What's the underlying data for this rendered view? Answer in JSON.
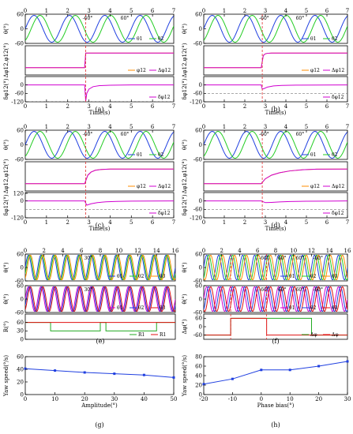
{
  "chart_data": [
    {
      "panel": "(a)",
      "type": "line",
      "xlim": [
        0,
        7
      ],
      "xticks": [
        0,
        1,
        2,
        3,
        4,
        5,
        6,
        7
      ],
      "xlabel": "Time(s)",
      "event_x": 2.85,
      "subplots": [
        {
          "ylabel": "θ(°)",
          "ylim": [
            -60,
            60
          ],
          "yticks": [
            "60",
            "0",
            "-60"
          ],
          "series": [
            {
              "name": "θ1",
              "color": "#1f3fe0",
              "kind": "sine",
              "amplitude": 55,
              "frequency": 0.6,
              "phase_deg": 0
            },
            {
              "name": "θ2",
              "color": "#22cc22",
              "kind": "sine",
              "amplitude": 55,
              "frequency": 0.6,
              "phase_deg": -60
            }
          ],
          "annotations": [
            "-60°",
            "60°"
          ]
        },
        {
          "ylabel": "Δφ12,φ12(°)",
          "ylim": [
            -120,
            120
          ],
          "yticks": [],
          "series": [
            {
              "name": "φ12",
              "color": "#ff8c00",
              "x": [
                0,
                2.8,
                2.85,
                7
              ],
              "y": [
                -60,
                -60,
                60,
                60
              ]
            },
            {
              "name": "Δφ12",
              "color": "#d000d0",
              "x": [
                0,
                2.8,
                2.85,
                7
              ],
              "y": [
                -60,
                -60,
                60,
                60
              ]
            }
          ]
        },
        {
          "ylabel": "δφ12(°)",
          "ylim": [
            -120,
            60
          ],
          "yticks": [
            "0",
            "-60",
            "-120"
          ],
          "series": [
            {
              "name": "δφ12",
              "color": "#d000d0",
              "x": [
                0,
                2.8,
                2.85,
                2.9,
                3.0,
                3.2,
                3.5,
                4,
                5,
                7
              ],
              "y": [
                0,
                0,
                -115,
                -60,
                -30,
                -12,
                -5,
                -2,
                0,
                0
              ]
            }
          ],
          "reference_y": -120
        }
      ]
    },
    {
      "panel": "(b)",
      "type": "line",
      "xlim": [
        0,
        7
      ],
      "xticks": [
        0,
        1,
        2,
        3,
        4,
        5,
        6,
        7
      ],
      "xlabel": "Time(s)",
      "event_x": 2.85,
      "subplots": [
        {
          "ylabel": "θ(°)",
          "ylim": [
            -60,
            60
          ],
          "yticks": [
            "60",
            "0",
            "-60"
          ],
          "series": [
            {
              "name": "θ1",
              "color": "#1f3fe0",
              "kind": "sine",
              "amplitude": 55,
              "frequency": 0.6,
              "phase_deg": 0
            },
            {
              "name": "θ2",
              "color": "#22cc22",
              "kind": "sine",
              "amplitude": 55,
              "frequency": 0.6,
              "phase_deg": -60
            }
          ],
          "annotations": [
            "-60°",
            "60°"
          ]
        },
        {
          "ylabel": "Δφ12,φ12(°)",
          "ylim": [
            -120,
            120
          ],
          "yticks": [],
          "series": [
            {
              "name": "φ12",
              "color": "#ff8c00",
              "x": [
                0,
                2.8,
                2.9,
                3.0,
                3.1,
                3.3,
                7
              ],
              "y": [
                -60,
                -60,
                40,
                54,
                58,
                60,
                60
              ]
            },
            {
              "name": "Δφ12",
              "color": "#d000d0",
              "x": [
                0,
                2.8,
                2.9,
                3.0,
                3.1,
                3.3,
                7
              ],
              "y": [
                -60,
                -60,
                40,
                54,
                58,
                60,
                60
              ]
            }
          ]
        },
        {
          "ylabel": "δφ12(°)",
          "ylim": [
            -120,
            60
          ],
          "yticks": [
            "0",
            "-60",
            "-120"
          ],
          "series": [
            {
              "name": "δφ12",
              "color": "#d000d0",
              "x": [
                0,
                2.8,
                2.85,
                2.95,
                3.1,
                3.4,
                3.8,
                4.5,
                7
              ],
              "y": [
                0,
                0,
                -30,
                -25,
                -15,
                -7,
                -3,
                -1,
                0
              ]
            }
          ],
          "reference_y": -60
        }
      ]
    },
    {
      "panel": "(c)",
      "type": "line",
      "xlim": [
        0,
        7
      ],
      "xticks": [
        0,
        1,
        2,
        3,
        4,
        5,
        6,
        7
      ],
      "xlabel": "Time(s)",
      "event_x": 2.85,
      "subplots": [
        {
          "ylabel": "θ(°)",
          "ylim": [
            -60,
            60
          ],
          "yticks": [
            "60",
            "0",
            "-60"
          ],
          "series": [
            {
              "name": "θ1",
              "color": "#1f3fe0",
              "kind": "sine",
              "amplitude": 55,
              "frequency": 0.6,
              "phase_deg": 0
            },
            {
              "name": "θ2",
              "color": "#22cc22",
              "kind": "sine",
              "amplitude": 55,
              "frequency": 0.6,
              "phase_deg": -60
            }
          ],
          "annotations": [
            "-60°",
            "60°"
          ]
        },
        {
          "ylabel": "Δφ12,φ12(°)",
          "ylim": [
            -120,
            120
          ],
          "yticks": [],
          "series": [
            {
              "name": "φ12",
              "color": "#ff8c00",
              "x": [
                0,
                2.8,
                2.95,
                3.1,
                3.3,
                3.6,
                4.0,
                7
              ],
              "y": [
                -60,
                -60,
                10,
                35,
                50,
                57,
                60,
                60
              ]
            },
            {
              "name": "Δφ12",
              "color": "#d000d0",
              "x": [
                0,
                2.8,
                2.95,
                3.1,
                3.3,
                3.6,
                4.0,
                7
              ],
              "y": [
                -60,
                -60,
                10,
                35,
                50,
                57,
                60,
                60
              ]
            }
          ]
        },
        {
          "ylabel": "δφ12(°)",
          "ylim": [
            -120,
            60
          ],
          "yticks": [
            "120",
            "0",
            "-120"
          ],
          "series": [
            {
              "name": "δφ12",
              "color": "#d000d0",
              "x": [
                0,
                2.8,
                2.9,
                3.1,
                3.4,
                3.8,
                4.3,
                5,
                7
              ],
              "y": [
                0,
                0,
                -30,
                -20,
                -12,
                -6,
                -3,
                -1,
                0
              ]
            }
          ],
          "reference_y": -60
        }
      ]
    },
    {
      "panel": "(d)",
      "type": "line",
      "xlim": [
        0,
        7
      ],
      "xticks": [
        0,
        1,
        2,
        3,
        4,
        5,
        6,
        7
      ],
      "xlabel": "Time(s)",
      "event_x": 2.85,
      "subplots": [
        {
          "ylabel": "θ(°)",
          "ylim": [
            -60,
            60
          ],
          "yticks": [
            "60",
            "0",
            "-60"
          ],
          "series": [
            {
              "name": "θ1",
              "color": "#1f3fe0",
              "kind": "sine",
              "amplitude": 55,
              "frequency": 0.6,
              "phase_deg": 0
            },
            {
              "name": "θ2",
              "color": "#22cc22",
              "kind": "sine",
              "amplitude": 55,
              "frequency": 0.6,
              "phase_deg": -60
            }
          ],
          "annotations": [
            "-60°",
            "60°"
          ]
        },
        {
          "ylabel": "Δφ12,φ12(°)",
          "ylim": [
            -120,
            120
          ],
          "yticks": [],
          "series": [
            {
              "name": "φ12",
              "color": "#ff8c00",
              "x": [
                0,
                2.8,
                3.0,
                3.3,
                3.7,
                4.2,
                4.8,
                5.5,
                7
              ],
              "y": [
                -60,
                -60,
                -20,
                10,
                30,
                45,
                54,
                59,
                60
              ]
            },
            {
              "name": "Δφ12",
              "color": "#d000d0",
              "x": [
                0,
                2.8,
                3.0,
                3.3,
                3.7,
                4.2,
                4.8,
                5.5,
                7
              ],
              "y": [
                -60,
                -60,
                -20,
                10,
                30,
                45,
                54,
                59,
                60
              ]
            }
          ]
        },
        {
          "ylabel": "δφ12(°)",
          "ylim": [
            -120,
            60
          ],
          "yticks": [
            "0",
            "-60",
            "-120"
          ],
          "series": [
            {
              "name": "δφ12",
              "color": "#d000d0",
              "x": [
                0,
                2.8,
                3.0,
                3.3,
                3.7,
                4.2,
                5,
                6,
                7
              ],
              "y": [
                0,
                0,
                -12,
                -10,
                -7,
                -4,
                -2,
                -1,
                0
              ]
            }
          ],
          "reference_y": -60
        }
      ]
    },
    {
      "panel": "(e)",
      "type": "line",
      "xlim": [
        0,
        16
      ],
      "xticks": [
        0,
        2,
        4,
        6,
        8,
        10,
        12,
        14,
        16
      ],
      "subplots": [
        {
          "ylabel": "θ(°)",
          "ylim": [
            -60,
            60
          ],
          "yticks": [
            "60",
            "0",
            "-60"
          ],
          "series": [
            {
              "name": "θ1",
              "color": "#1f3fe0",
              "kind": "sine",
              "amplitude": 55,
              "frequency": 0.75,
              "phase_deg": 0
            },
            {
              "name": "θ2",
              "color": "#22cc22",
              "kind": "sine",
              "amplitude": 55,
              "frequency": 0.75,
              "phase_deg": -30
            },
            {
              "name": "θ3",
              "color": "#ff8c00",
              "kind": "sine",
              "amplitude": 55,
              "frequency": 0.75,
              "phase_deg": -60
            }
          ],
          "annotations": [
            "30°"
          ]
        },
        {
          "ylabel": "θ̇(°)",
          "ylim": [
            -60,
            60
          ],
          "yticks": [
            "60",
            "0",
            "-60"
          ],
          "series": [
            {
              "name": "θ1",
              "color": "#d000d0",
              "kind": "sine",
              "amplitude": 55,
              "frequency": 0.75,
              "phase_deg": 0
            },
            {
              "name": "θ2",
              "color": "#1f3fe0",
              "kind": "sine",
              "amplitude": 55,
              "frequency": 0.75,
              "phase_deg": -30
            },
            {
              "name": "θ3",
              "color": "#e01010",
              "kind": "sine",
              "amplitude": 55,
              "frequency": 0.75,
              "phase_deg": -60
            }
          ],
          "annotations": [
            "30°"
          ]
        },
        {
          "ylabel": "R(°)",
          "ylim": [
            0,
            90
          ],
          "yticks": [
            "60",
            "30",
            "0"
          ],
          "series": [
            {
              "name": "R1",
              "color": "#22aa22",
              "x": [
                0,
                2.7,
                2.7,
                8,
                8,
                8.6,
                8.6,
                14,
                14,
                16
              ],
              "y": [
                60,
                60,
                30,
                30,
                60,
                60,
                30,
                30,
                60,
                60
              ]
            },
            {
              "name": "R1",
              "color": "#e01010",
              "x": [
                0,
                16
              ],
              "y": [
                60,
                60
              ]
            }
          ]
        }
      ]
    },
    {
      "panel": "(f)",
      "type": "line",
      "xlim": [
        0,
        16
      ],
      "xticks": [
        0,
        2,
        4,
        6,
        8,
        10,
        12,
        14,
        16
      ],
      "event_x": [
        3,
        7
      ],
      "subplots": [
        {
          "ylabel": "θ(°)",
          "ylim": [
            -60,
            60
          ],
          "yticks": [
            "60",
            "0",
            "-60"
          ],
          "series": [
            {
              "name": "θ1",
              "color": "#1f3fe0",
              "kind": "sine",
              "amplitude": 55,
              "frequency": 0.75,
              "phase_deg": 0
            },
            {
              "name": "θ2",
              "color": "#22cc22",
              "kind": "sine",
              "amplitude": 55,
              "frequency": 0.75,
              "phase_deg": -60
            },
            {
              "name": "θ3",
              "color": "#ff8c00",
              "kind": "sine",
              "amplitude": 55,
              "frequency": 0.75,
              "phase_deg": -120
            }
          ],
          "annotations": [
            "-60°",
            "60°",
            "60°",
            "-60°"
          ]
        },
        {
          "ylabel": "θ̇(°)",
          "ylim": [
            -60,
            60
          ],
          "yticks": [
            "60",
            "0",
            "-60"
          ],
          "series": [
            {
              "name": "θ1",
              "color": "#d000d0",
              "kind": "sine",
              "amplitude": 55,
              "frequency": 0.75,
              "phase_deg": 0
            },
            {
              "name": "θ2",
              "color": "#1f3fe0",
              "kind": "sine",
              "amplitude": 55,
              "frequency": 0.75,
              "phase_deg": -60
            },
            {
              "name": "θ3",
              "color": "#e01010",
              "kind": "sine",
              "amplitude": 55,
              "frequency": 0.75,
              "phase_deg": -120
            }
          ],
          "annotations": [
            "-60°",
            "60°",
            "60°",
            "-60°"
          ]
        },
        {
          "ylabel": "Δφ(°)",
          "ylim": [
            -90,
            90
          ],
          "yticks": [
            "60",
            "0",
            "-60"
          ],
          "series": [
            {
              "name": "Δφ",
              "color": "#22aa22",
              "x": [
                0,
                3,
                3,
                12,
                12,
                16
              ],
              "y": [
                -60,
                -60,
                60,
                60,
                -60,
                -60
              ]
            },
            {
              "name": "Δφ",
              "color": "#e01010",
              "x": [
                0,
                3,
                3,
                7,
                7,
                16
              ],
              "y": [
                -60,
                -60,
                60,
                60,
                -60,
                -60
              ]
            }
          ]
        }
      ]
    },
    {
      "panel": "(g)",
      "type": "line",
      "xlabel": "Amplitude(°)",
      "ylabel": "Yaw speed(°/s)",
      "xlim": [
        0,
        50
      ],
      "ylim": [
        0,
        60
      ],
      "xticks": [
        0,
        10,
        20,
        30,
        40,
        50
      ],
      "yticks": [
        0,
        20,
        40,
        60
      ],
      "series": [
        {
          "name": "",
          "color": "#1f3fe0",
          "x": [
            0,
            10,
            20,
            30,
            40,
            50
          ],
          "y": [
            41,
            38,
            35,
            33,
            31,
            27
          ]
        }
      ]
    },
    {
      "panel": "(h)",
      "type": "line",
      "xlabel": "Phase bias(°)",
      "ylabel": "Yaw speed(°/s)",
      "xlim": [
        -20,
        30
      ],
      "ylim": [
        0,
        80
      ],
      "xticks": [
        -20,
        -10,
        0,
        10,
        20,
        30
      ],
      "yticks": [
        0,
        20,
        40,
        60,
        80
      ],
      "series": [
        {
          "name": "",
          "color": "#1f3fe0",
          "x": [
            -20,
            -10,
            0,
            10,
            20,
            30
          ],
          "y": [
            22,
            33,
            52,
            52,
            60,
            70
          ]
        }
      ]
    }
  ]
}
